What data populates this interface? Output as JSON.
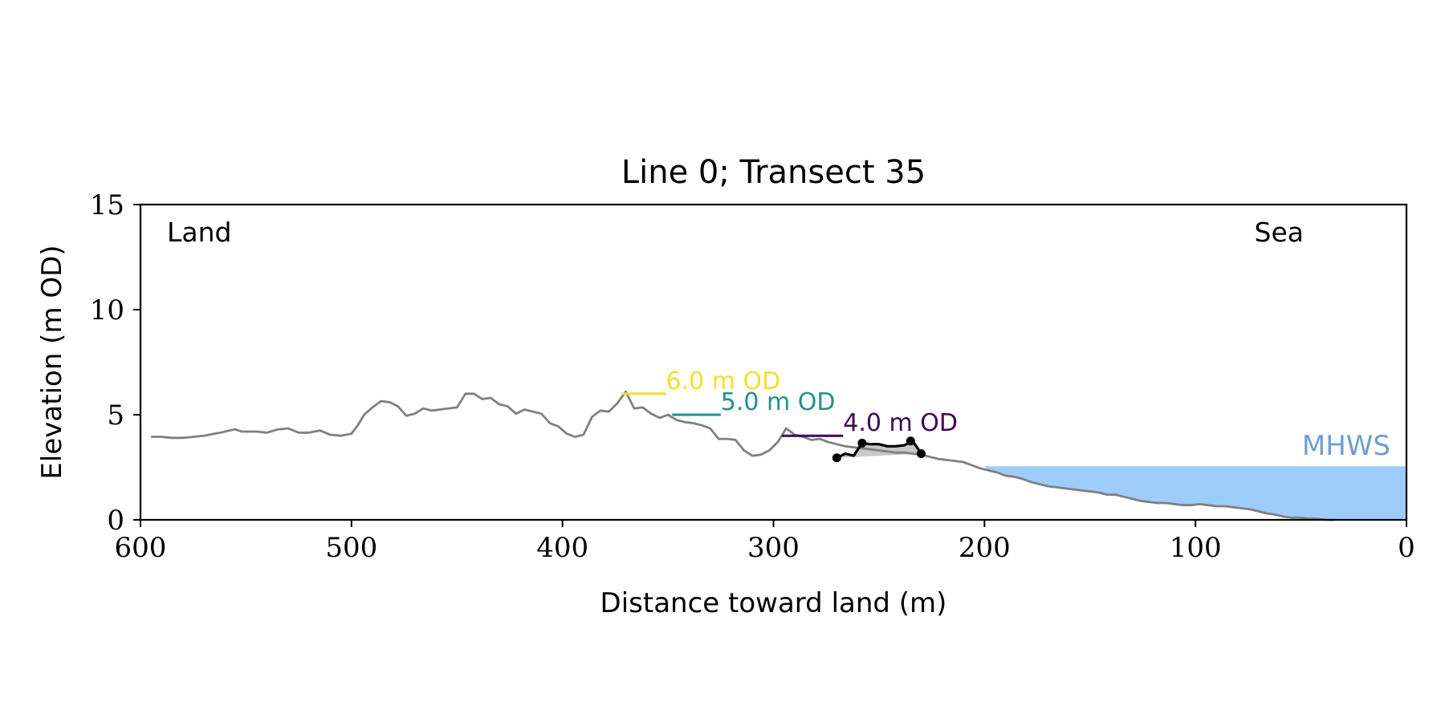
{
  "chart_data": {
    "type": "line",
    "title": "Line 0; Transect 35",
    "xlabel": "Distance toward land (m)",
    "ylabel": "Elevation (m OD)",
    "xlim": [
      600,
      0
    ],
    "ylim": [
      0,
      15
    ],
    "x_ticks": [
      600,
      500,
      400,
      300,
      200,
      100,
      0
    ],
    "y_ticks": [
      0,
      5,
      10,
      15
    ],
    "grid": false,
    "corner_labels": {
      "left": "Land",
      "right": "Sea"
    },
    "colors": {
      "profile": "#808080",
      "mhws_fill": "#9fcdfb",
      "mhws_text": "#6f9fcf",
      "highlight": "#000000",
      "shade": "#c8c8c8",
      "contour_6": "#f3e028",
      "contour_5": "#21918c",
      "contour_4": "#440154"
    },
    "profile": {
      "x": [
        595,
        590,
        585,
        580,
        575,
        570,
        565,
        562,
        558,
        555,
        552,
        548,
        545,
        540,
        535,
        530,
        525,
        520,
        515,
        510,
        505,
        500,
        497,
        494,
        490,
        486,
        482,
        478,
        474,
        470,
        466,
        462,
        458,
        454,
        450,
        446,
        442,
        438,
        434,
        430,
        426,
        422,
        418,
        414,
        410,
        406,
        402,
        398,
        394,
        390,
        386,
        382,
        378,
        374,
        370,
        366,
        362,
        358,
        354,
        350,
        346,
        342,
        338,
        334,
        330,
        326,
        322,
        318,
        314,
        310,
        306,
        302,
        298,
        294,
        290,
        286,
        282,
        278,
        274,
        270,
        266,
        262,
        258,
        254,
        250,
        246,
        242,
        238,
        234,
        230,
        226,
        222,
        218,
        214,
        210,
        206,
        202,
        198,
        194,
        190,
        186,
        182,
        178,
        174,
        170,
        166,
        162,
        158,
        154,
        150,
        146,
        142,
        138,
        134,
        130,
        126,
        122,
        118,
        114,
        110,
        106,
        102,
        98,
        94,
        90,
        86,
        82,
        78,
        74,
        70,
        66,
        62,
        58,
        54,
        50,
        46,
        42,
        38,
        34
      ],
      "y": [
        3.95,
        3.95,
        3.9,
        3.9,
        3.95,
        4.0,
        4.1,
        4.15,
        4.25,
        4.3,
        4.2,
        4.2,
        4.2,
        4.15,
        4.3,
        4.35,
        4.15,
        4.15,
        4.25,
        4.05,
        4.0,
        4.1,
        4.5,
        5.0,
        5.35,
        5.65,
        5.6,
        5.4,
        4.95,
        5.05,
        5.3,
        5.2,
        5.25,
        5.3,
        5.35,
        6.0,
        6.0,
        5.75,
        5.8,
        5.5,
        5.4,
        5.05,
        5.25,
        5.15,
        5.05,
        4.6,
        4.45,
        4.1,
        3.95,
        4.05,
        4.9,
        5.2,
        5.15,
        5.55,
        6.1,
        5.3,
        5.35,
        5.05,
        4.85,
        5.0,
        4.75,
        4.65,
        4.6,
        4.5,
        4.35,
        3.85,
        3.85,
        3.8,
        3.3,
        3.05,
        3.1,
        3.3,
        3.7,
        4.35,
        4.05,
        3.95,
        3.8,
        3.85,
        3.7,
        3.6,
        3.5,
        3.45,
        3.4,
        3.35,
        3.3,
        3.25,
        3.2,
        3.2,
        3.15,
        3.1,
        3.0,
        2.9,
        2.85,
        2.8,
        2.75,
        2.6,
        2.45,
        2.35,
        2.25,
        2.1,
        2.05,
        1.95,
        1.8,
        1.7,
        1.6,
        1.55,
        1.5,
        1.45,
        1.4,
        1.35,
        1.3,
        1.2,
        1.2,
        1.1,
        1.0,
        0.9,
        0.85,
        0.8,
        0.8,
        0.75,
        0.7,
        0.7,
        0.75,
        0.7,
        0.65,
        0.65,
        0.6,
        0.55,
        0.5,
        0.4,
        0.3,
        0.25,
        0.15,
        0.1,
        0.1,
        0.05,
        0.05,
        0.0,
        0.0
      ]
    },
    "highlight_segment": {
      "x": [
        270,
        266,
        262,
        258,
        254,
        250,
        246,
        242,
        238,
        234,
        230
      ],
      "y": [
        2.95,
        3.15,
        3.05,
        3.65,
        3.6,
        3.6,
        3.5,
        3.5,
        3.55,
        3.75,
        3.15
      ]
    },
    "highlight_points": {
      "x": [
        270,
        258,
        235,
        230
      ],
      "y": [
        2.95,
        3.65,
        3.75,
        3.15
      ]
    },
    "contours": [
      {
        "label": "6.0 m OD",
        "elevation": 6.0,
        "x_start": 372,
        "x_end": 351
      },
      {
        "label": "5.0 m OD",
        "elevation": 5.0,
        "x_start": 348,
        "x_end": 325
      },
      {
        "label": "4.0 m OD",
        "elevation": 4.0,
        "x_start": 296,
        "x_end": 267
      }
    ],
    "mhws": {
      "label": "MHWS",
      "elevation": 2.55,
      "x_from": 200,
      "x_to": 0
    }
  }
}
